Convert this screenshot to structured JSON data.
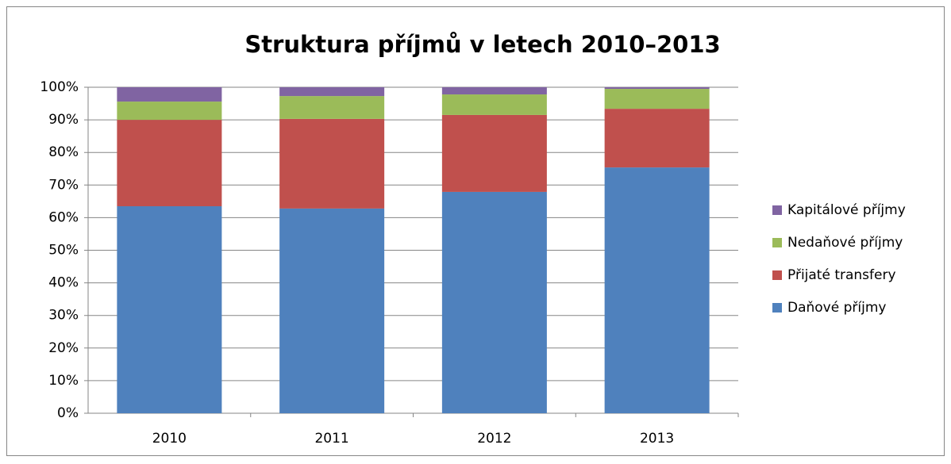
{
  "chart_data": {
    "type": "stacked_bar",
    "title": "Struktura příjmů v letech 2010–2013",
    "categories": [
      "2010",
      "2011",
      "2012",
      "2013"
    ],
    "series": [
      {
        "name": "Daňové příjmy",
        "color": "#4f81bd",
        "values": [
          63.5,
          62.8,
          67.9,
          75.4
        ]
      },
      {
        "name": "Přijaté transfery",
        "color": "#c0504d",
        "values": [
          26.5,
          27.5,
          23.6,
          18.0
        ]
      },
      {
        "name": "Nedaňové příjmy",
        "color": "#9bbb59",
        "values": [
          5.6,
          7.0,
          6.3,
          6.1
        ]
      },
      {
        "name": "Kapitálové příjmy",
        "color": "#8064a2",
        "values": [
          4.4,
          2.7,
          2.2,
          0.5
        ]
      }
    ],
    "ylim": [
      0,
      100
    ],
    "yticks": [
      {
        "value": 0,
        "label": "0%"
      },
      {
        "value": 10,
        "label": "10%"
      },
      {
        "value": 20,
        "label": "20%"
      },
      {
        "value": 30,
        "label": "30%"
      },
      {
        "value": 40,
        "label": "40%"
      },
      {
        "value": 50,
        "label": "50%"
      },
      {
        "value": 60,
        "label": "60%"
      },
      {
        "value": 70,
        "label": "70%"
      },
      {
        "value": 80,
        "label": "80%"
      },
      {
        "value": 90,
        "label": "90%"
      },
      {
        "value": 100,
        "label": "100%"
      }
    ],
    "grid": true,
    "legend": "right"
  }
}
